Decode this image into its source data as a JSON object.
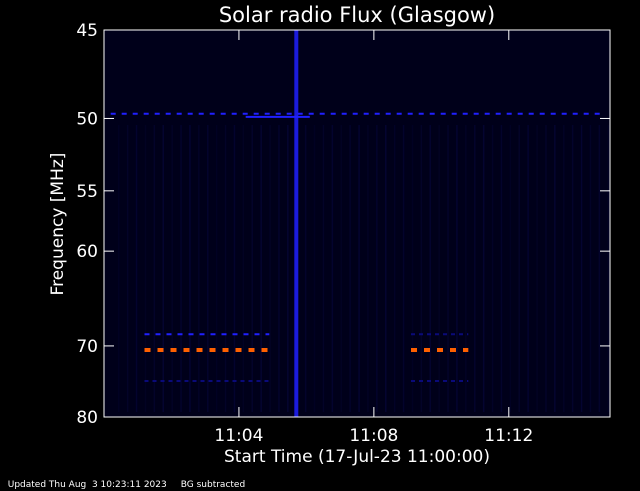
{
  "chart_data": {
    "type": "heatmap",
    "title": "Solar radio Flux (Glasgow)",
    "xlabel": "Start Time (17-Jul-23 11:00:00)",
    "ylabel": "Frequency [MHz]",
    "x_ticks": [
      {
        "minute": 4,
        "label": "11:04"
      },
      {
        "minute": 8,
        "label": "11:08"
      },
      {
        "minute": 12,
        "label": "11:12"
      }
    ],
    "y_ticks": [
      {
        "mhz": 45,
        "label": "45"
      },
      {
        "mhz": 50,
        "label": "50"
      },
      {
        "mhz": 55,
        "label": "55"
      },
      {
        "mhz": 60,
        "label": "60"
      },
      {
        "mhz": 70,
        "label": "70"
      },
      {
        "mhz": 80,
        "label": "80"
      }
    ],
    "x_range_minutes": [
      0,
      15.0
    ],
    "y_range_mhz": [
      45,
      80
    ],
    "y_scale": "reciprocal",
    "features": [
      {
        "name": "interference-line",
        "freq_mhz": 49.7,
        "from_min": 0.2,
        "to_min": 14.8,
        "intensity": "medium"
      },
      {
        "name": "vertical-burst",
        "at_min": 5.7,
        "from_mhz": 45,
        "to_mhz": 80,
        "intensity": "medium"
      },
      {
        "name": "horizontal-burst",
        "freq_mhz": 49.9,
        "from_min": 4.2,
        "to_min": 6.1,
        "intensity": "medium"
      },
      {
        "name": "interference-70",
        "freq_mhz": 70.5,
        "from_min": 1.2,
        "to_min": 4.9,
        "intensity": "high"
      },
      {
        "name": "interference-70b",
        "freq_mhz": 70.5,
        "from_min": 9.1,
        "to_min": 10.8,
        "intensity": "high"
      },
      {
        "name": "interference-68",
        "freq_mhz": 68.6,
        "from_min": 1.2,
        "to_min": 4.9,
        "intensity": "medium"
      },
      {
        "name": "interference-68b",
        "freq_mhz": 68.6,
        "from_min": 9.1,
        "to_min": 10.8,
        "intensity": "low"
      },
      {
        "name": "interference-74",
        "freq_mhz": 74.6,
        "from_min": 1.2,
        "to_min": 4.9,
        "intensity": "low"
      },
      {
        "name": "interference-74b",
        "freq_mhz": 74.6,
        "from_min": 9.1,
        "to_min": 10.8,
        "intensity": "low"
      }
    ],
    "grid": false,
    "colors": {
      "background": "#000000",
      "plot_background": "#00001a",
      "axis": "#ffffff",
      "low": "#0a0a7a",
      "medium": "#2020ff",
      "high": "#ff6000"
    }
  },
  "footer": {
    "updated": "Updated Thu Aug  3 10:23:11 2023",
    "note": "BG subtracted"
  }
}
